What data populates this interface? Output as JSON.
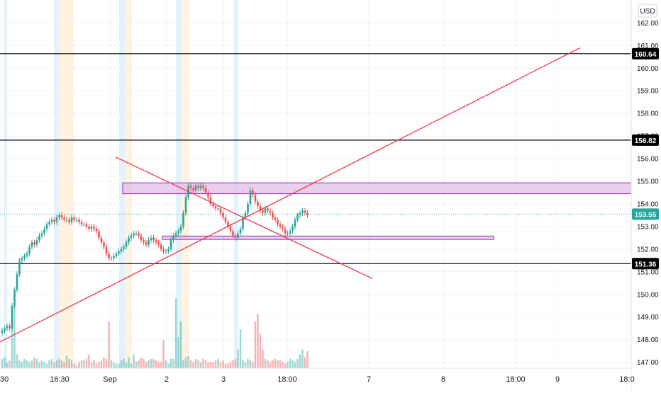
{
  "currency_label": "USD",
  "colors": {
    "up": "#26a69a",
    "down": "#ef5350",
    "trendline": "#f23645",
    "hline": "#000000",
    "zone_fill": "#e1bee7",
    "zone_stroke": "#9c27b0",
    "grid": "#f0f3fa",
    "last_price_line": "#26a69a",
    "session_orange": "#fff3e0",
    "session_blue": "#e3f2fd"
  },
  "chart_data": {
    "type": "candlestick",
    "symbol_currency": "USD",
    "ylim": [
      146.8,
      162.7
    ],
    "y_ticks": [
      147,
      148,
      149,
      150,
      151,
      152,
      153,
      154,
      155,
      156,
      157,
      158,
      159,
      160,
      161,
      162
    ],
    "x_ticks": [
      {
        "label": "30",
        "t": 0
      },
      {
        "label": "16:30",
        "t": 84
      },
      {
        "label": "Sep",
        "t": 155
      },
      {
        "label": "2",
        "t": 235
      },
      {
        "label": "3",
        "t": 315
      },
      {
        "label": "18:00",
        "t": 405
      },
      {
        "label": "7",
        "t": 520
      },
      {
        "label": "8",
        "t": 625
      },
      {
        "label": "18:00",
        "t": 727
      },
      {
        "label": "9",
        "t": 786
      },
      {
        "label": "18:0",
        "t": 884
      }
    ],
    "price_labels": [
      {
        "value": "160.64",
        "style": "level"
      },
      {
        "value": "156.82",
        "style": "level"
      },
      {
        "value": "153.55",
        "style": "last"
      },
      {
        "value": "151.36",
        "style": "level"
      }
    ],
    "horizontal_levels": [
      160.64,
      156.82,
      151.36
    ],
    "last_price": 153.55,
    "zones": [
      {
        "t_start": 173,
        "t_end": 890,
        "top": 154.93,
        "bottom": 154.45
      },
      {
        "t_start": 229,
        "t_end": 696,
        "top": 152.58,
        "bottom": 152.43
      }
    ],
    "trendlines": [
      {
        "t1": 0,
        "p1": 147.9,
        "t2": 818,
        "p2": 160.9
      },
      {
        "t1": 163,
        "p1": 156.07,
        "t2": 525,
        "p2": 150.7
      }
    ],
    "candles_t0": 3,
    "candles_dt": 3.5,
    "closes": [
      148.4,
      148.5,
      148.6,
      148.5,
      149.5,
      150.2,
      150.9,
      151.5,
      151.6,
      151.7,
      151.8,
      152.1,
      152.3,
      152.2,
      152.4,
      152.6,
      152.7,
      152.9,
      153.1,
      153.2,
      153.3,
      153.2,
      153.4,
      153.5,
      153.4,
      153.3,
      153.3,
      153.2,
      153.4,
      153.3,
      153.3,
      153.2,
      153.1,
      153.1,
      153.0,
      152.9,
      153.0,
      152.9,
      152.8,
      152.5,
      152.3,
      152.1,
      151.8,
      151.6,
      151.6,
      151.7,
      151.8,
      151.9,
      152.0,
      152.1,
      152.3,
      152.5,
      152.6,
      152.7,
      152.7,
      152.6,
      152.4,
      152.3,
      152.2,
      152.4,
      152.5,
      152.4,
      152.3,
      152.2,
      152.0,
      151.9,
      151.9,
      152.0,
      152.4,
      152.6,
      152.7,
      152.8,
      153.0,
      153.6,
      154.3,
      154.8,
      154.7,
      154.6,
      154.8,
      154.7,
      154.8,
      154.7,
      154.5,
      154.3,
      154.0,
      153.9,
      153.8,
      153.8,
      153.6,
      153.4,
      153.2,
      153.0,
      152.8,
      152.6,
      152.5,
      152.7,
      152.9,
      153.4,
      153.6,
      154.0,
      154.6,
      154.4,
      154.1,
      153.9,
      153.7,
      153.6,
      153.8,
      153.7,
      153.6,
      153.4,
      153.3,
      153.1,
      153.0,
      152.9,
      152.7,
      152.7,
      152.8,
      153.0,
      153.3,
      153.5,
      153.6,
      153.7,
      153.6,
      153.5
    ],
    "volume_scale_max": 50,
    "volumes": [
      6,
      7,
      4,
      5,
      28,
      40,
      9,
      5,
      4,
      6,
      5,
      4,
      5,
      7,
      6,
      4,
      5,
      4,
      3,
      5,
      6,
      4,
      5,
      6,
      5,
      4,
      8,
      6,
      5,
      3,
      2,
      4,
      5,
      5,
      6,
      9,
      4,
      5,
      3,
      4,
      5,
      7,
      6,
      30,
      5,
      4,
      3,
      3,
      5,
      6,
      4,
      7,
      3,
      9,
      4,
      5,
      7,
      6,
      4,
      5,
      6,
      6,
      5,
      4,
      4,
      18,
      5,
      3,
      6,
      6,
      45,
      20,
      30,
      5,
      7,
      8,
      5,
      4,
      6,
      5,
      4,
      6,
      5,
      4,
      4,
      4,
      5,
      6,
      4,
      5,
      3,
      3,
      4,
      5,
      6,
      12,
      25,
      5,
      4,
      6,
      5,
      4,
      30,
      35,
      22,
      12,
      6,
      5,
      4,
      5,
      6,
      5,
      5,
      4,
      3,
      4,
      6,
      5,
      4,
      6,
      9,
      12,
      7,
      11
    ]
  }
}
